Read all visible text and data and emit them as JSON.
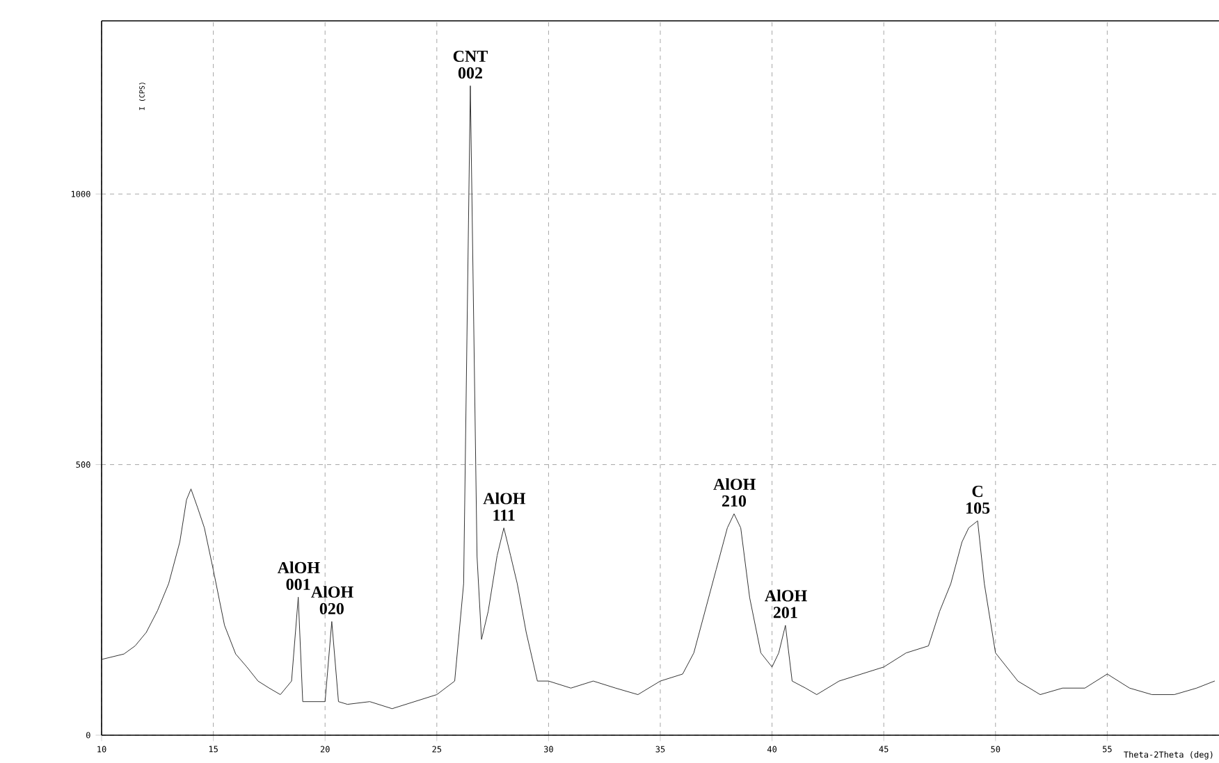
{
  "chart_data": {
    "type": "line",
    "xlabel": "Theta-2Theta (deg)",
    "ylabel": "I (CPS)",
    "x": [
      10,
      11,
      11.5,
      12,
      12.5,
      13,
      13.5,
      13.8,
      14,
      14.3,
      14.6,
      15,
      15.5,
      16,
      16.5,
      17,
      17.5,
      18,
      18.5,
      18.8,
      19,
      19.5,
      20,
      20.3,
      20.6,
      21,
      22,
      23,
      24,
      25,
      25.8,
      26.2,
      26.5,
      26.8,
      27,
      27.3,
      27.7,
      28,
      28.3,
      28.6,
      29,
      29.5,
      30,
      31,
      32,
      33,
      34,
      35,
      36,
      36.5,
      37,
      37.5,
      38,
      38.3,
      38.6,
      39,
      39.5,
      40,
      40.3,
      40.6,
      40.9,
      41.5,
      42,
      43,
      44,
      45,
      46,
      47,
      47.5,
      48,
      48.5,
      48.8,
      49.2,
      49.5,
      50,
      51,
      52,
      53,
      54,
      55,
      56,
      57,
      58,
      59,
      59.8
    ],
    "values": [
      140,
      150,
      165,
      190,
      230,
      280,
      357,
      435,
      455,
      420,
      383,
      305,
      203,
      150,
      126,
      100,
      87,
      75,
      100,
      255,
      62,
      62,
      62,
      210,
      62,
      57,
      62,
      49,
      62,
      75,
      100,
      280,
      1200,
      330,
      177,
      229,
      332,
      383,
      332,
      280,
      190,
      100,
      100,
      87,
      100,
      87,
      75,
      100,
      113,
      152,
      229,
      306,
      383,
      409,
      383,
      254,
      152,
      126,
      152,
      203,
      100,
      87,
      75,
      100,
      113,
      126,
      152,
      165,
      229,
      280,
      357,
      383,
      396,
      280,
      152,
      100,
      75,
      87,
      87,
      113,
      87,
      75,
      75,
      87,
      100
    ],
    "color": "#333333",
    "xlim": [
      10,
      60
    ],
    "ylim": [
      0,
      1320
    ],
    "xticks": [
      10,
      15,
      20,
      25,
      30,
      35,
      40,
      45,
      50,
      55
    ],
    "yticks": [
      0,
      500,
      1000
    ],
    "grid": true,
    "annotations": [
      {
        "text": "AlOH 001",
        "x": 18.8,
        "y": 255
      },
      {
        "text": "AlOH 020",
        "x": 20.3,
        "y": 210
      },
      {
        "text": "CNT 002",
        "x": 26.5,
        "y": 1200
      },
      {
        "text": "AlOH 111",
        "x": 28,
        "y": 383
      },
      {
        "text": "AlOH 210",
        "x": 38.3,
        "y": 409
      },
      {
        "text": "AlOH 201",
        "x": 40.6,
        "y": 203
      },
      {
        "text": "C 105",
        "x": 49.2,
        "y": 396
      }
    ]
  }
}
